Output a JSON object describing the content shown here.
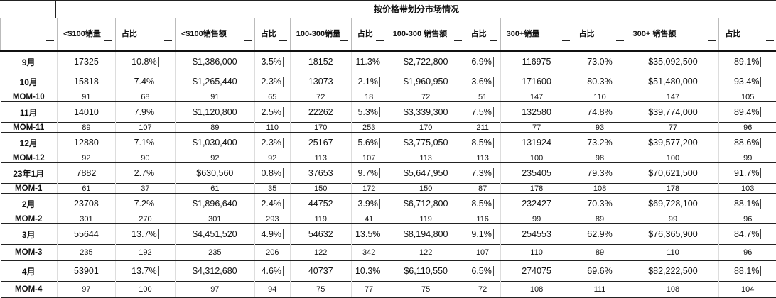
{
  "sheet": {
    "title": "按价格带划分市场情况",
    "columns": [
      {
        "label": "",
        "width": 80
      },
      {
        "label": "<$100销量",
        "width": 82
      },
      {
        "label": "占比",
        "width": 84
      },
      {
        "label": "<$100销售额",
        "width": 112
      },
      {
        "label": "占比",
        "width": 50
      },
      {
        "label": "100-300销量",
        "width": 86
      },
      {
        "label": "占比",
        "width": 50
      },
      {
        "label": "100-300 销售额",
        "width": 110
      },
      {
        "label": "占比",
        "width": 50
      },
      {
        "label": "300+销量",
        "width": 102
      },
      {
        "label": "占比",
        "width": 76
      },
      {
        "label": "300+ 销售额",
        "width": 130
      },
      {
        "label": "占比",
        "width": 80
      }
    ],
    "rows": [
      {
        "type": "month",
        "cells": [
          "9月",
          "17325",
          "10.8%",
          "$1,386,000",
          "3.5%",
          "18152",
          "11.3%",
          "$2,722,800",
          "6.9%",
          "116975",
          "73.0%",
          "$35,092,500",
          "89.1%"
        ]
      },
      {
        "type": "month",
        "cells": [
          "10月",
          "15818",
          "7.4%",
          "$1,265,440",
          "2.3%",
          "13073",
          "2.1%",
          "$1,960,950",
          "3.6%",
          "171600",
          "80.3%",
          "$51,480,000",
          "93.4%"
        ]
      },
      {
        "type": "mom",
        "cells": [
          "MOM-10",
          "91",
          "68",
          "91",
          "65",
          "72",
          "18",
          "72",
          "51",
          "147",
          "110",
          "147",
          "105"
        ]
      },
      {
        "type": "month",
        "cells": [
          "11月",
          "14010",
          "7.9%",
          "$1,120,800",
          "2.5%",
          "22262",
          "5.3%",
          "$3,339,300",
          "7.5%",
          "132580",
          "74.8%",
          "$39,774,000",
          "89.4%"
        ]
      },
      {
        "type": "mom",
        "cells": [
          "MOM-11",
          "89",
          "107",
          "89",
          "110",
          "170",
          "253",
          "170",
          "211",
          "77",
          "93",
          "77",
          "96"
        ]
      },
      {
        "type": "month",
        "cells": [
          "12月",
          "12880",
          "7.1%",
          "$1,030,400",
          "2.3%",
          "25167",
          "5.6%",
          "$3,775,050",
          "8.5%",
          "131924",
          "73.2%",
          "$39,577,200",
          "88.6%"
        ]
      },
      {
        "type": "mom",
        "cells": [
          "MOM-12",
          "92",
          "90",
          "92",
          "92",
          "113",
          "107",
          "113",
          "113",
          "100",
          "98",
          "100",
          "99"
        ]
      },
      {
        "type": "month",
        "cells": [
          "23年1月",
          "7882",
          "2.7%",
          "$630,560",
          "0.8%",
          "37653",
          "9.7%",
          "$5,647,950",
          "7.3%",
          "235405",
          "79.3%",
          "$70,621,500",
          "91.7%"
        ]
      },
      {
        "type": "mom",
        "cells": [
          "MOM-1",
          "61",
          "37",
          "61",
          "35",
          "150",
          "172",
          "150",
          "87",
          "178",
          "108",
          "178",
          "103"
        ]
      },
      {
        "type": "month",
        "cells": [
          "2月",
          "23708",
          "7.2%",
          "$1,896,640",
          "2.4%",
          "44752",
          "3.9%",
          "$6,712,800",
          "8.5%",
          "232427",
          "70.3%",
          "$69,728,100",
          "88.1%"
        ]
      },
      {
        "type": "mom",
        "cells": [
          "MOM-2",
          "301",
          "270",
          "301",
          "293",
          "119",
          "41",
          "119",
          "116",
          "99",
          "89",
          "99",
          "96"
        ]
      },
      {
        "type": "month",
        "cells": [
          "3月",
          "55644",
          "13.7%",
          "$4,451,520",
          "4.9%",
          "54632",
          "13.5%",
          "$8,194,800",
          "9.1%",
          "254553",
          "62.9%",
          "$76,365,900",
          "84.7%"
        ]
      },
      {
        "type": "mom",
        "tall": true,
        "cells": [
          "MOM-3",
          "235",
          "192",
          "235",
          "206",
          "122",
          "342",
          "122",
          "107",
          "110",
          "89",
          "110",
          "96"
        ]
      },
      {
        "type": "month",
        "cells": [
          "4月",
          "53901",
          "13.7%",
          "$4,312,680",
          "4.6%",
          "40737",
          "10.3%",
          "$6,110,550",
          "6.5%",
          "274075",
          "69.6%",
          "$82,222,500",
          "88.1%"
        ]
      },
      {
        "type": "mom",
        "tall": true,
        "cells": [
          "MOM-4",
          "97",
          "100",
          "97",
          "94",
          "75",
          "77",
          "75",
          "72",
          "108",
          "111",
          "108",
          "104"
        ]
      }
    ]
  }
}
